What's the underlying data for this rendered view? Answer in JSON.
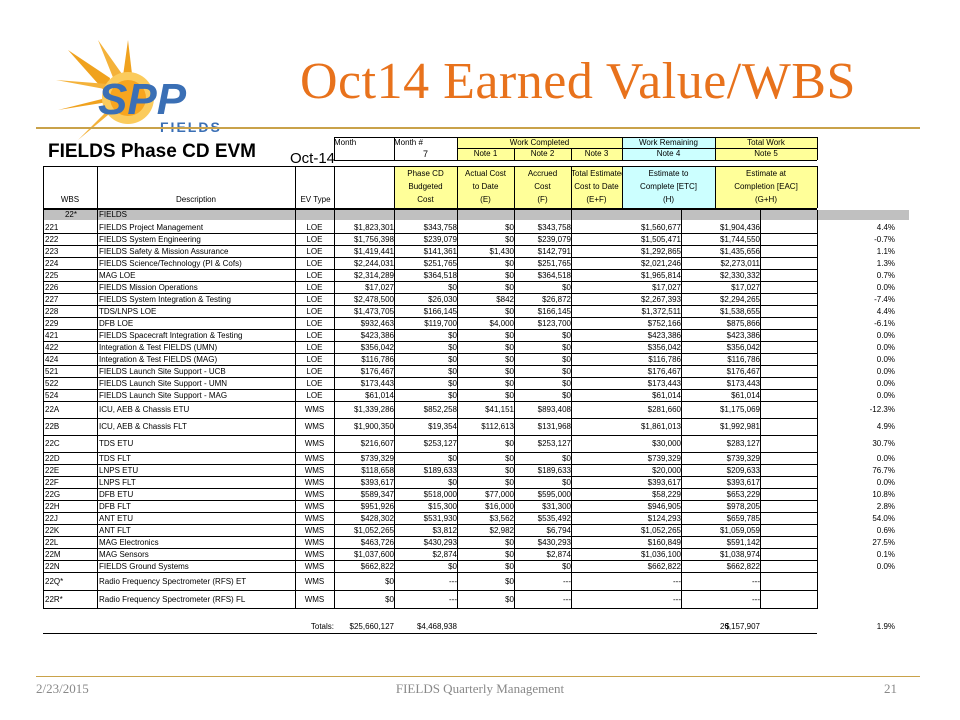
{
  "slide": {
    "title": "Oct14 Earned Value/WBS",
    "footer_date": "2/23/2015",
    "footer_center": "FIELDS Quarterly Management",
    "page_number": "21"
  },
  "logo": {
    "text": "SPP",
    "subtext": "FIELDS",
    "colors": {
      "orange": "#F0A21E",
      "blue": "#3A6FB5"
    }
  },
  "colors": {
    "title": "#E8721C",
    "rule": "#C9A24A",
    "cyan": "#CCFFFF",
    "yellow": "#FFFF99",
    "gray": "#C0C0C0"
  },
  "sheet": {
    "title": "FIELDS Phase CD EVM",
    "month_label": "Month",
    "month_value": "Oct-14",
    "month_num_label": "Month #",
    "month_num_value": "7",
    "group_work_completed": "Work Completed",
    "group_work_remaining": "Work Remaining",
    "group_total_work": "Total Work",
    "notes": [
      "Note 1",
      "Note 2",
      "Note 3",
      "Note 4",
      "Note 5"
    ],
    "headers": {
      "wbs": "WBS",
      "description": "Description",
      "evtype": "EV Type",
      "phase": [
        "Phase CD",
        "Budgeted",
        "Cost"
      ],
      "actual": [
        "Actual Cost",
        "to Date",
        "(E)"
      ],
      "accrued": [
        "Accrued",
        "Cost",
        "(F)"
      ],
      "total_est": [
        "Total Estimated",
        "Cost to Date",
        "(E+F)"
      ],
      "etc": [
        "Estimate to",
        "Complete [ETC]",
        "(H)"
      ],
      "eac": [
        "Estimate at",
        "Completion [EAC]",
        "(G+H)"
      ]
    },
    "group_row": {
      "wbs": "22*",
      "description": "FIELDS"
    },
    "rows": [
      {
        "wbs": "221",
        "desc": "FIELDS Project Management",
        "ev": "LOE",
        "budget": "$1,823,301",
        "actual": "$343,758",
        "accrued": "$0",
        "total": "$343,758",
        "etc": "$1,560,677",
        "eac": "$1,904,436",
        "pct": "4.4%"
      },
      {
        "wbs": "222",
        "desc": "FIELDS System Engineering",
        "ev": "LOE",
        "budget": "$1,756,398",
        "actual": "$239,079",
        "accrued": "$0",
        "total": "$239,079",
        "etc": "$1,505,471",
        "eac": "$1,744,550",
        "pct": "-0.7%"
      },
      {
        "wbs": "223",
        "desc": "FIELDS Safety & Mission Assurance",
        "ev": "LOE",
        "budget": "$1,419,441",
        "actual": "$141,361",
        "accrued": "$1,430",
        "total": "$142,791",
        "etc": "$1,292,865",
        "eac": "$1,435,656",
        "pct": "1.1%"
      },
      {
        "wbs": "224",
        "desc": "FIELDS Science/Technology (PI & Cofs)",
        "ev": "LOE",
        "budget": "$2,244,031",
        "actual": "$251,765",
        "accrued": "$0",
        "total": "$251,765",
        "etc": "$2,021,246",
        "eac": "$2,273,011",
        "pct": "1.3%"
      },
      {
        "wbs": "225",
        "desc": "MAG LOE",
        "ev": "LOE",
        "budget": "$2,314,289",
        "actual": "$364,518",
        "accrued": "$0",
        "total": "$364,518",
        "etc": "$1,965,814",
        "eac": "$2,330,332",
        "pct": "0.7%"
      },
      {
        "wbs": "226",
        "desc": "FIELDS Mission Operations",
        "ev": "LOE",
        "budget": "$17,027",
        "actual": "$0",
        "accrued": "$0",
        "total": "$0",
        "etc": "$17,027",
        "eac": "$17,027",
        "pct": "0.0%"
      },
      {
        "wbs": "227",
        "desc": "FIELDS System Integration & Testing",
        "ev": "LOE",
        "budget": "$2,478,500",
        "actual": "$26,030",
        "accrued": "$842",
        "total": "$26,872",
        "etc": "$2,267,393",
        "eac": "$2,294,265",
        "pct": "-7.4%"
      },
      {
        "wbs": "228",
        "desc": "TDS/LNPS LOE",
        "ev": "LOE",
        "budget": "$1,473,705",
        "actual": "$166,145",
        "accrued": "$0",
        "total": "$166,145",
        "etc": "$1,372,511",
        "eac": "$1,538,655",
        "pct": "4.4%"
      },
      {
        "wbs": "229",
        "desc": "DFB LOE",
        "ev": "LOE",
        "budget": "$932,463",
        "actual": "$119,700",
        "accrued": "$4,000",
        "total": "$123,700",
        "etc": "$752,166",
        "eac": "$875,866",
        "pct": "-6.1%"
      },
      {
        "wbs": "421",
        "desc": "FIELDS Spacecraft Integration & Testing",
        "ev": "LOE",
        "budget": "$423,386",
        "actual": "$0",
        "accrued": "$0",
        "total": "$0",
        "etc": "$423,386",
        "eac": "$423,386",
        "pct": "0.0%"
      },
      {
        "wbs": "422",
        "desc": "Integration & Test FIELDS (UMN)",
        "ev": "LOE",
        "budget": "$356,042",
        "actual": "$0",
        "accrued": "$0",
        "total": "$0",
        "etc": "$356,042",
        "eac": "$356,042",
        "pct": "0.0%"
      },
      {
        "wbs": "424",
        "desc": "Integration & Test FIELDS (MAG)",
        "ev": "LOE",
        "budget": "$116,786",
        "actual": "$0",
        "accrued": "$0",
        "total": "$0",
        "etc": "$116,786",
        "eac": "$116,786",
        "pct": "0.0%"
      },
      {
        "wbs": "521",
        "desc": "FIELDS Launch Site Support - UCB",
        "ev": "LOE",
        "budget": "$176,467",
        "actual": "$0",
        "accrued": "$0",
        "total": "$0",
        "etc": "$176,467",
        "eac": "$176,467",
        "pct": "0.0%"
      },
      {
        "wbs": "522",
        "desc": "FIELDS Launch Site Support - UMN",
        "ev": "LOE",
        "budget": "$173,443",
        "actual": "$0",
        "accrued": "$0",
        "total": "$0",
        "etc": "$173,443",
        "eac": "$173,443",
        "pct": "0.0%"
      },
      {
        "wbs": "524",
        "desc": "FIELDS Launch Site Support - MAG",
        "ev": "LOE",
        "budget": "$61,014",
        "actual": "$0",
        "accrued": "$0",
        "total": "$0",
        "etc": "$61,014",
        "eac": "$61,014",
        "pct": "0.0%"
      },
      {
        "wbs": "22A",
        "desc": "ICU, AEB & Chassis ETU",
        "ev": "WMS",
        "budget": "$1,339,286",
        "actual": "$852,258",
        "accrued": "$41,151",
        "total": "$893,408",
        "etc": "$281,660",
        "eac": "$1,175,069",
        "pct": "-12.3%"
      },
      {
        "wbs": "22B",
        "desc": "ICU, AEB & Chassis FLT",
        "ev": "WMS",
        "budget": "$1,900,350",
        "actual": "$19,354",
        "accrued": "$112,613",
        "total": "$131,968",
        "etc": "$1,861,013",
        "eac": "$1,992,981",
        "pct": "4.9%"
      },
      {
        "wbs": "22C",
        "desc": "TDS ETU",
        "ev": "WMS",
        "budget": "$216,607",
        "actual": "$253,127",
        "accrued": "$0",
        "total": "$253,127",
        "etc": "$30,000",
        "eac": "$283,127",
        "pct": "30.7%"
      },
      {
        "wbs": "22D",
        "desc": "TDS FLT",
        "ev": "WMS",
        "budget": "$739,329",
        "actual": "$0",
        "accrued": "$0",
        "total": "$0",
        "etc": "$739,329",
        "eac": "$739,329",
        "pct": "0.0%"
      },
      {
        "wbs": "22E",
        "desc": "LNPS ETU",
        "ev": "WMS",
        "budget": "$118,658",
        "actual": "$189,633",
        "accrued": "$0",
        "total": "$189,633",
        "etc": "$20,000",
        "eac": "$209,633",
        "pct": "76.7%"
      },
      {
        "wbs": "22F",
        "desc": "LNPS FLT",
        "ev": "WMS",
        "budget": "$393,617",
        "actual": "$0",
        "accrued": "$0",
        "total": "$0",
        "etc": "$393,617",
        "eac": "$393,617",
        "pct": "0.0%"
      },
      {
        "wbs": "22G",
        "desc": "DFB ETU",
        "ev": "WMS",
        "budget": "$589,347",
        "actual": "$518,000",
        "accrued": "$77,000",
        "total": "$595,000",
        "etc": "$58,229",
        "eac": "$653,229",
        "pct": "10.8%"
      },
      {
        "wbs": "22H",
        "desc": "DFB FLT",
        "ev": "WMS",
        "budget": "$951,926",
        "actual": "$15,300",
        "accrued": "$16,000",
        "total": "$31,300",
        "etc": "$946,905",
        "eac": "$978,205",
        "pct": "2.8%"
      },
      {
        "wbs": "22J",
        "desc": "ANT ETU",
        "ev": "WMS",
        "budget": "$428,302",
        "actual": "$531,930",
        "accrued": "$3,562",
        "total": "$535,492",
        "etc": "$124,293",
        "eac": "$659,785",
        "pct": "54.0%"
      },
      {
        "wbs": "22K",
        "desc": "ANT FLT",
        "ev": "WMS",
        "budget": "$1,052,265",
        "actual": "$3,812",
        "accrued": "$2,982",
        "total": "$6,794",
        "etc": "$1,052,265",
        "eac": "$1,059,059",
        "pct": "0.6%"
      },
      {
        "wbs": "22L",
        "desc": "MAG Electronics",
        "ev": "WMS",
        "budget": "$463,726",
        "actual": "$430,293",
        "accrued": "$0",
        "total": "$430,293",
        "etc": "$160,849",
        "eac": "$591,142",
        "pct": "27.5%"
      },
      {
        "wbs": "22M",
        "desc": "MAG Sensors",
        "ev": "WMS",
        "budget": "$1,037,600",
        "actual": "$2,874",
        "accrued": "$0",
        "total": "$2,874",
        "etc": "$1,036,100",
        "eac": "$1,038,974",
        "pct": "0.1%"
      },
      {
        "wbs": "22N",
        "desc": "FIELDS Ground Systems",
        "ev": "WMS",
        "budget": "$662,822",
        "actual": "$0",
        "accrued": "$0",
        "total": "$0",
        "etc": "$662,822",
        "eac": "$662,822",
        "pct": "0.0%"
      },
      {
        "wbs": "22Q*",
        "desc": "Radio Frequency Spectrometer (RFS) ET",
        "ev": "WMS",
        "budget": "$0",
        "actual": "---",
        "accrued": "$0",
        "total": "---",
        "etc": "---",
        "eac": "---",
        "pct": ""
      },
      {
        "wbs": "22R*",
        "desc": "Radio Frequency Spectrometer (RFS) FL",
        "ev": "WMS",
        "budget": "$0",
        "actual": "---",
        "accrued": "$0",
        "total": "---",
        "etc": "---",
        "eac": "---",
        "pct": ""
      }
    ],
    "totals": {
      "label": "Totals:",
      "budget": "$25,660,127",
      "actual": "$4,468,938",
      "currency": "$",
      "eac": "26,157,907",
      "pct": "1.9%"
    }
  }
}
